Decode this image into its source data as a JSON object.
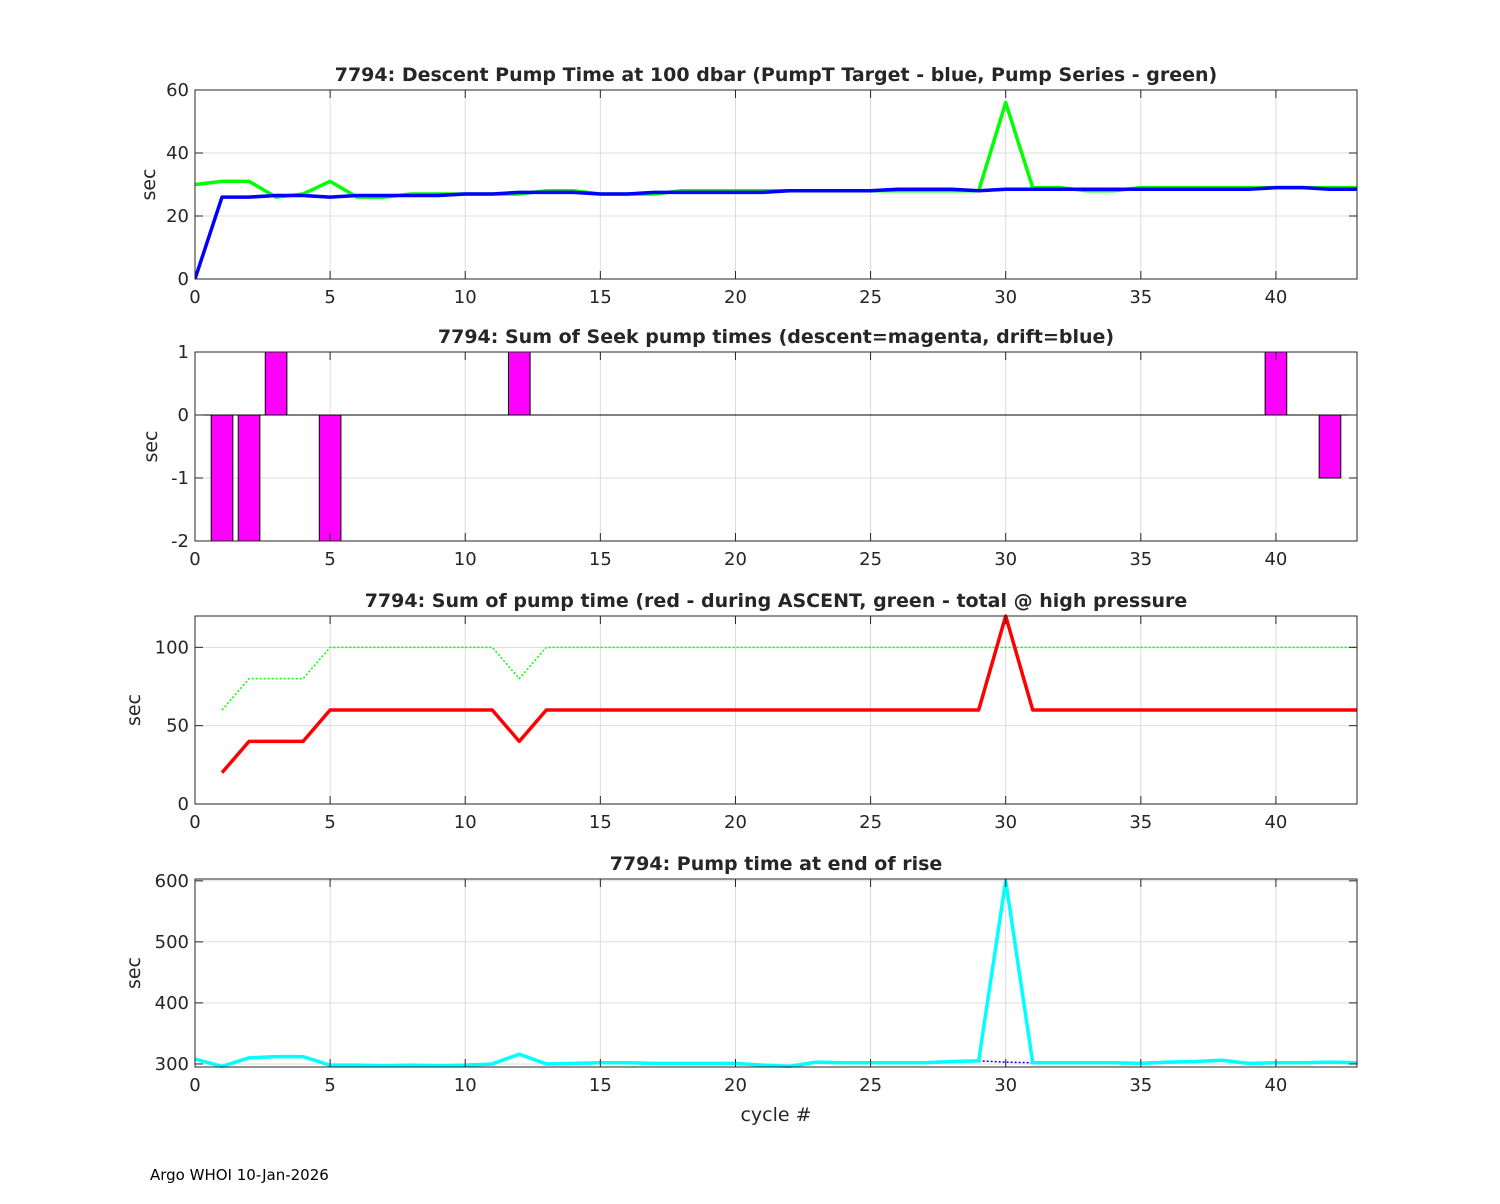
{
  "chart_data": [
    {
      "type": "line",
      "title": "7794: Descent Pump Time at 100 dbar (PumpT Target - blue, Pump Series - green)",
      "xlabel": "",
      "ylabel": "sec",
      "xlim": [
        0,
        43
      ],
      "ylim": [
        0,
        60
      ],
      "xticks": [
        0,
        5,
        10,
        15,
        20,
        25,
        30,
        35,
        40
      ],
      "yticks": [
        0,
        20,
        40,
        60
      ],
      "grid": true,
      "series": [
        {
          "name": "Pump Series",
          "color": "#00ff00",
          "style": "solid",
          "x": [
            0,
            1,
            2,
            3,
            4,
            5,
            6,
            7,
            8,
            9,
            10,
            11,
            12,
            13,
            14,
            15,
            16,
            17,
            18,
            19,
            20,
            21,
            22,
            23,
            24,
            25,
            26,
            27,
            28,
            29,
            30,
            31,
            32,
            33,
            34,
            35,
            36,
            37,
            38,
            39,
            40,
            41,
            42,
            43
          ],
          "y": [
            30,
            31,
            31,
            26,
            27,
            31,
            26,
            26,
            27,
            27,
            27,
            27,
            27,
            28,
            28,
            27,
            27,
            27,
            28,
            28,
            28,
            28,
            28,
            28,
            28,
            28,
            28,
            28,
            28,
            28,
            56,
            29,
            29,
            28,
            28,
            29,
            29,
            29,
            29,
            29,
            29,
            29,
            29,
            29
          ]
        },
        {
          "name": "PumpT Target",
          "color": "#0000ff",
          "style": "solid",
          "x": [
            0,
            1,
            2,
            3,
            4,
            5,
            6,
            7,
            8,
            9,
            10,
            11,
            12,
            13,
            14,
            15,
            16,
            17,
            18,
            19,
            20,
            21,
            22,
            23,
            24,
            25,
            26,
            27,
            28,
            29,
            30,
            31,
            32,
            33,
            34,
            35,
            36,
            37,
            38,
            39,
            40,
            41,
            42,
            43
          ],
          "y": [
            0,
            26,
            26,
            26.5,
            26.5,
            26,
            26.5,
            26.5,
            26.5,
            26.5,
            27,
            27,
            27.5,
            27.5,
            27.5,
            27,
            27,
            27.5,
            27.5,
            27.5,
            27.5,
            27.5,
            28,
            28,
            28,
            28,
            28.5,
            28.5,
            28.5,
            28,
            28.5,
            28.5,
            28.5,
            28.5,
            28.5,
            28.5,
            28.5,
            28.5,
            28.5,
            28.5,
            29,
            29,
            28.5,
            28.5
          ]
        }
      ]
    },
    {
      "type": "bar",
      "title": "7794: Sum of Seek pump times (descent=magenta, drift=blue)",
      "xlabel": "",
      "ylabel": "sec",
      "xlim": [
        0,
        43
      ],
      "ylim": [
        -2,
        1
      ],
      "xticks": [
        0,
        5,
        10,
        15,
        20,
        25,
        30,
        35,
        40
      ],
      "yticks": [
        -2,
        -1,
        0,
        1
      ],
      "grid": true,
      "series": [
        {
          "name": "descent",
          "color": "#ff00ff",
          "x": [
            1,
            2,
            3,
            5,
            12,
            40,
            42
          ],
          "y": [
            -2,
            -2,
            1,
            -2,
            1,
            1,
            -1
          ]
        }
      ]
    },
    {
      "type": "line",
      "title": "7794: Sum of pump time (red - during ASCENT, green - total @ high pressure",
      "xlabel": "",
      "ylabel": "sec",
      "xlim": [
        0,
        43
      ],
      "ylim": [
        0,
        120
      ],
      "xticks": [
        0,
        5,
        10,
        15,
        20,
        25,
        30,
        35,
        40
      ],
      "yticks": [
        0,
        50,
        100
      ],
      "grid": true,
      "series": [
        {
          "name": "total @ high pressure",
          "color": "#00ff00",
          "style": "dotted",
          "x": [
            1,
            2,
            3,
            4,
            5,
            6,
            7,
            8,
            9,
            10,
            11,
            12,
            13,
            14,
            15,
            16,
            17,
            18,
            19,
            20,
            21,
            22,
            23,
            24,
            25,
            26,
            27,
            28,
            29,
            30,
            31,
            32,
            33,
            34,
            35,
            36,
            37,
            38,
            39,
            40,
            41,
            42,
            43
          ],
          "y": [
            60,
            80,
            80,
            80,
            100,
            100,
            100,
            100,
            100,
            100,
            100,
            80,
            100,
            100,
            100,
            100,
            100,
            100,
            100,
            100,
            100,
            100,
            100,
            100,
            100,
            100,
            100,
            100,
            100,
            100,
            100,
            100,
            100,
            100,
            100,
            100,
            100,
            100,
            100,
            100,
            100,
            100,
            100
          ]
        },
        {
          "name": "during ASCENT",
          "color": "#ff0000",
          "style": "solid",
          "x": [
            1,
            2,
            3,
            4,
            5,
            6,
            7,
            8,
            9,
            10,
            11,
            12,
            13,
            14,
            15,
            16,
            17,
            18,
            19,
            20,
            21,
            22,
            23,
            24,
            25,
            26,
            27,
            28,
            29,
            30,
            31,
            32,
            33,
            34,
            35,
            36,
            37,
            38,
            39,
            40,
            41,
            42,
            43
          ],
          "y": [
            20,
            40,
            40,
            40,
            60,
            60,
            60,
            60,
            60,
            60,
            60,
            40,
            60,
            60,
            60,
            60,
            60,
            60,
            60,
            60,
            60,
            60,
            60,
            60,
            60,
            60,
            60,
            60,
            60,
            120,
            60,
            60,
            60,
            60,
            60,
            60,
            60,
            60,
            60,
            60,
            60,
            60,
            60
          ]
        }
      ]
    },
    {
      "type": "line",
      "title": "7794: Pump time at end of rise",
      "xlabel": "cycle #",
      "ylabel": "sec",
      "xlim": [
        0,
        43
      ],
      "ylim": [
        295,
        603
      ],
      "xticks": [
        0,
        5,
        10,
        15,
        20,
        25,
        30,
        35,
        40
      ],
      "yticks": [
        300,
        400,
        500,
        600
      ],
      "grid": true,
      "series": [
        {
          "name": "blue reference",
          "color": "#0000ff",
          "style": "dotted",
          "x": [
            29,
            30,
            31
          ],
          "y": [
            305,
            303,
            302
          ]
        },
        {
          "name": "end of rise",
          "color": "#00ffff",
          "style": "solid",
          "x": [
            0,
            1,
            2,
            3,
            4,
            5,
            6,
            7,
            8,
            9,
            10,
            11,
            12,
            13,
            14,
            15,
            16,
            17,
            18,
            19,
            20,
            21,
            22,
            23,
            24,
            25,
            26,
            27,
            28,
            29,
            30,
            31,
            32,
            33,
            34,
            35,
            36,
            37,
            38,
            39,
            40,
            41,
            42,
            43
          ],
          "y": [
            308,
            296,
            310,
            312,
            312,
            298,
            298,
            297,
            298,
            297,
            298,
            300,
            316,
            300,
            301,
            302,
            302,
            301,
            301,
            301,
            301,
            298,
            296,
            303,
            302,
            302,
            302,
            302,
            304,
            305,
            600,
            302,
            302,
            302,
            302,
            301,
            303,
            304,
            306,
            301,
            302,
            302,
            303,
            302
          ]
        }
      ]
    }
  ],
  "footer": "Argo WHOI 10-Jan-2026"
}
